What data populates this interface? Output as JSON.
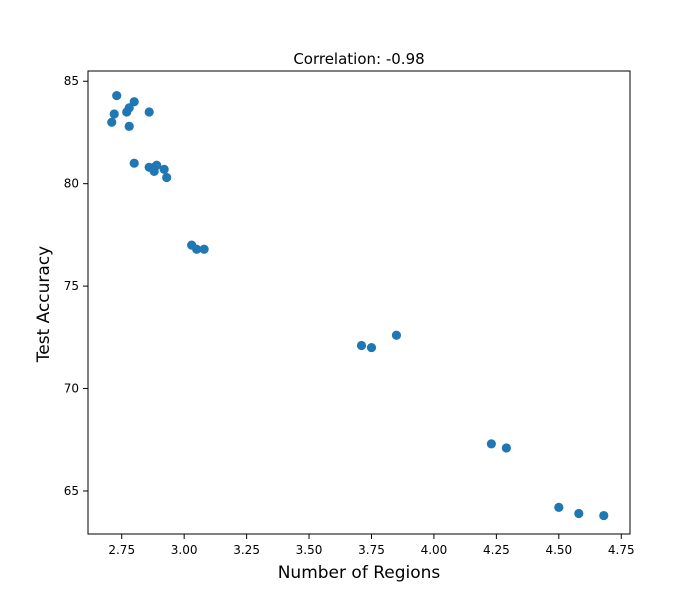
{
  "chart_data": {
    "type": "scatter",
    "title": "Correlation: -0.98",
    "xlabel": "Number of Regions",
    "ylabel": "Test Accuracy",
    "xlim": [
      2.615,
      4.785
    ],
    "ylim": [
      62.9,
      85.5
    ],
    "x_ticks": [
      2.75,
      3.0,
      3.25,
      3.5,
      3.75,
      4.0,
      4.25,
      4.5,
      4.75
    ],
    "x_tick_labels": [
      "2.75",
      "3.00",
      "3.25",
      "3.50",
      "3.75",
      "4.00",
      "4.25",
      "4.50",
      "4.75"
    ],
    "y_ticks": [
      65,
      70,
      75,
      80,
      85
    ],
    "y_tick_labels": [
      "65",
      "70",
      "75",
      "80",
      "85"
    ],
    "grid": false,
    "marker_color": "#1f77b4",
    "series": [
      {
        "points": [
          {
            "x": 2.71,
            "y": 83.0
          },
          {
            "x": 2.72,
            "y": 83.4
          },
          {
            "x": 2.73,
            "y": 84.3
          },
          {
            "x": 2.77,
            "y": 83.5
          },
          {
            "x": 2.78,
            "y": 83.7
          },
          {
            "x": 2.8,
            "y": 84.0
          },
          {
            "x": 2.78,
            "y": 82.8
          },
          {
            "x": 2.86,
            "y": 83.5
          },
          {
            "x": 2.8,
            "y": 81.0
          },
          {
            "x": 2.86,
            "y": 80.8
          },
          {
            "x": 2.88,
            "y": 80.8
          },
          {
            "x": 2.89,
            "y": 80.9
          },
          {
            "x": 2.88,
            "y": 80.6
          },
          {
            "x": 2.92,
            "y": 80.7
          },
          {
            "x": 2.93,
            "y": 80.3
          },
          {
            "x": 3.03,
            "y": 77.0
          },
          {
            "x": 3.05,
            "y": 76.8
          },
          {
            "x": 3.08,
            "y": 76.8
          },
          {
            "x": 3.71,
            "y": 72.1
          },
          {
            "x": 3.75,
            "y": 72.0
          },
          {
            "x": 3.85,
            "y": 72.6
          },
          {
            "x": 4.23,
            "y": 67.3
          },
          {
            "x": 4.29,
            "y": 67.1
          },
          {
            "x": 4.5,
            "y": 64.2
          },
          {
            "x": 4.58,
            "y": 63.9
          },
          {
            "x": 4.68,
            "y": 63.8
          }
        ]
      }
    ]
  }
}
